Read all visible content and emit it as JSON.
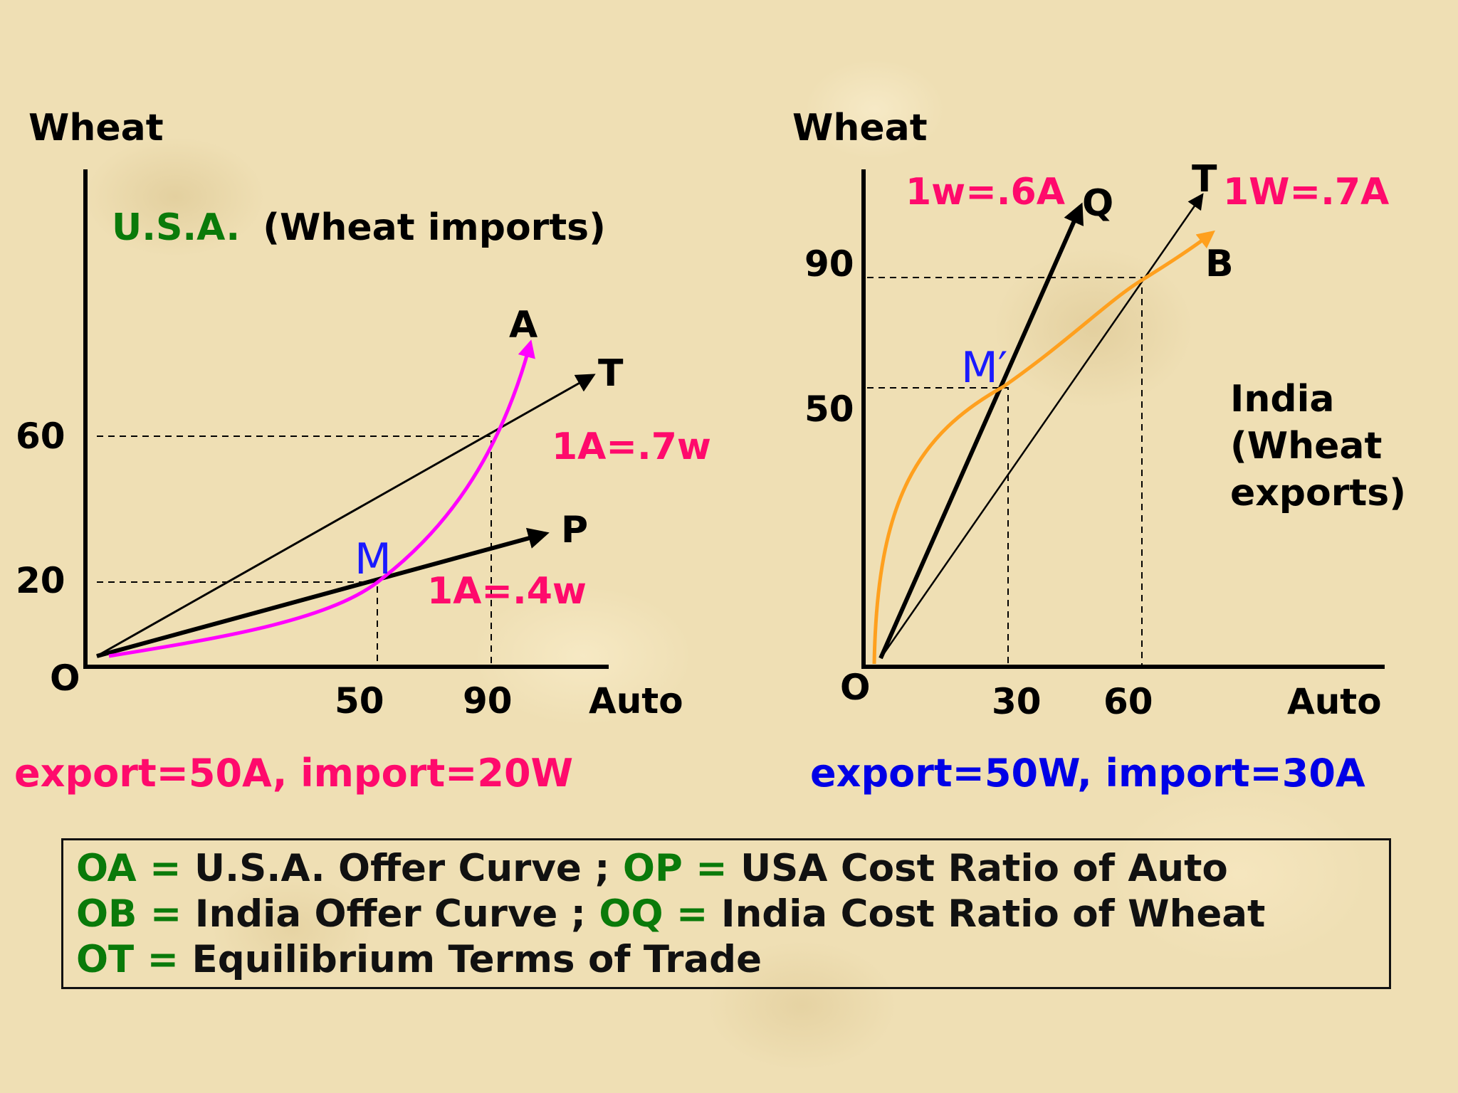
{
  "colors": {
    "background": "#efdfb4",
    "usa_offer_curve": "#ff00ff",
    "india_offer_curve": "#ffa01e",
    "ratio_text": "#ff0a6c",
    "label_green": "#0a7a0a",
    "india_summary_text": "#0000e6",
    "point_label": "#1a1aff"
  },
  "left_chart": {
    "y_axis_label": "Wheat",
    "x_axis_label": "Auto",
    "origin_label": "O",
    "title_country": "U.S.A.",
    "title_rest": "(Wheat imports)",
    "y_ticks": [
      "60",
      "20"
    ],
    "x_ticks": [
      "50",
      "90"
    ],
    "curve_label_A": "A",
    "line_label_T": "T",
    "line_label_P": "P",
    "point_label_M": "M",
    "ratio_T": "1A=.7w",
    "ratio_P": "1A=.4w",
    "summary": "export=50A, import=20W"
  },
  "right_chart": {
    "y_axis_label": "Wheat",
    "x_axis_label": "Auto",
    "origin_label": "O",
    "country_line1": "India",
    "country_line2": "(Wheat",
    "country_line3": "exports)",
    "y_ticks": [
      "90",
      "50"
    ],
    "x_ticks": [
      "30",
      "60"
    ],
    "curve_label_B": "B",
    "line_label_T": "T",
    "line_label_Q": "Q",
    "point_label_M": "M′",
    "ratio_Q": "1w=.6A",
    "ratio_T": "1W=.7A",
    "summary": "export=50W, import=30A"
  },
  "legend": {
    "line1_key1": "OA =",
    "line1_text1": "U.S.A. Offer Curve ;",
    "line1_key2": "OP =",
    "line1_text2": "USA Cost Ratio of Auto",
    "line2_key1": "OB =",
    "line2_text1": "India Offer Curve ;",
    "line2_key2": "OQ =",
    "line2_text2": "India Cost Ratio of Wheat",
    "line3_key1": "OT =",
    "line3_text1": "Equilibrium Terms of Trade"
  }
}
